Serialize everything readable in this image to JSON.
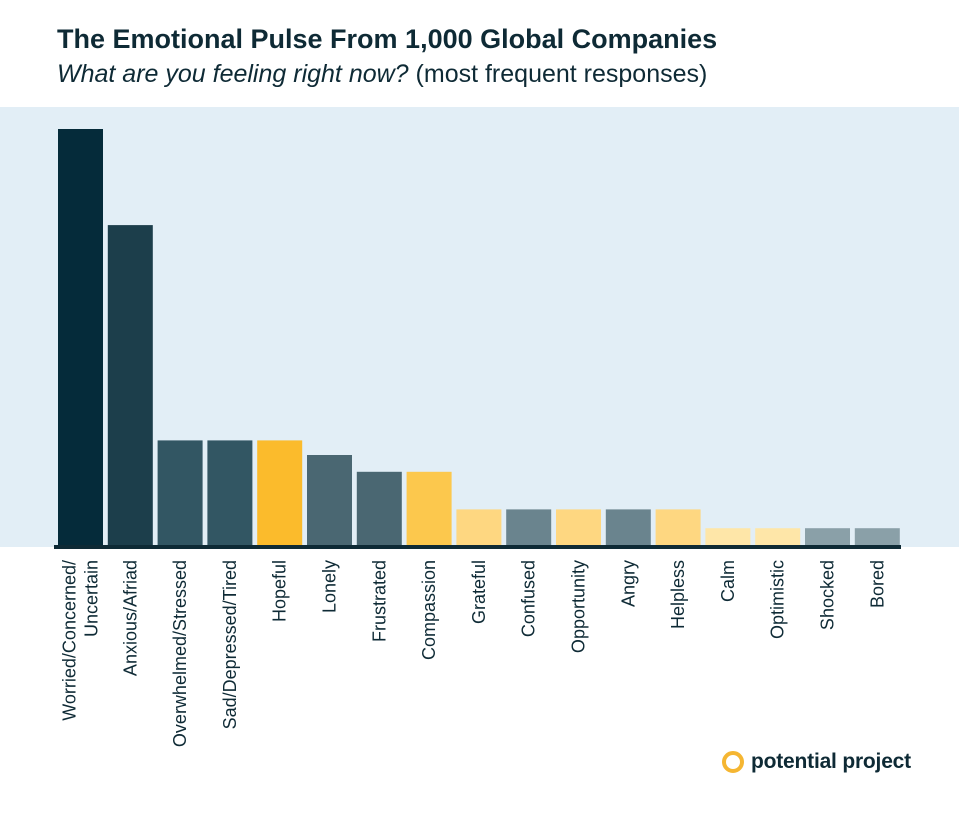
{
  "chart_data": {
    "type": "bar",
    "title": "The Emotional Pulse From 1,000 Global Companies",
    "subtitle_italic": "What are you feeling right now?",
    "subtitle_rest": " (most frequent responses)",
    "xlabel": "",
    "ylabel": "",
    "ylim": [
      0,
      100
    ],
    "grid": false,
    "legend": "none",
    "categories": [
      [
        "Worried/Concerned/",
        "Uncertain"
      ],
      [
        "Anxious/Afriad"
      ],
      [
        "Overwhelmed/Stressed"
      ],
      [
        "Sad/Depressed/Tired"
      ],
      [
        "Hopeful"
      ],
      [
        "Lonely"
      ],
      [
        "Frustrated"
      ],
      [
        "Compassion"
      ],
      [
        "Grateful"
      ],
      [
        "Confused"
      ],
      [
        "Opportunity"
      ],
      [
        "Angry"
      ],
      [
        "Helpless"
      ],
      [
        "Calm"
      ],
      [
        "Optimistic"
      ],
      [
        "Shocked"
      ],
      [
        "Bored"
      ]
    ],
    "values": [
      100,
      77,
      25.5,
      25.5,
      25.5,
      22,
      18,
      18,
      9,
      9,
      9,
      9,
      9,
      4.5,
      4.5,
      4.5,
      4.5
    ],
    "colors": [
      "#052b3a",
      "#1c3e4b",
      "#325663",
      "#325663",
      "#fbbb2c",
      "#4a6772",
      "#4a6772",
      "#fcc84d",
      "#fed781",
      "#6a848e",
      "#fed781",
      "#6a848e",
      "#fed781",
      "#fee6a8",
      "#fee6a8",
      "#8aa0a8",
      "#8aa0a8"
    ],
    "plot_background": "#e2eef6",
    "axis_color": "#0e2a35"
  },
  "brand": {
    "name": "potential project",
    "accent_color": "#f5b632"
  }
}
